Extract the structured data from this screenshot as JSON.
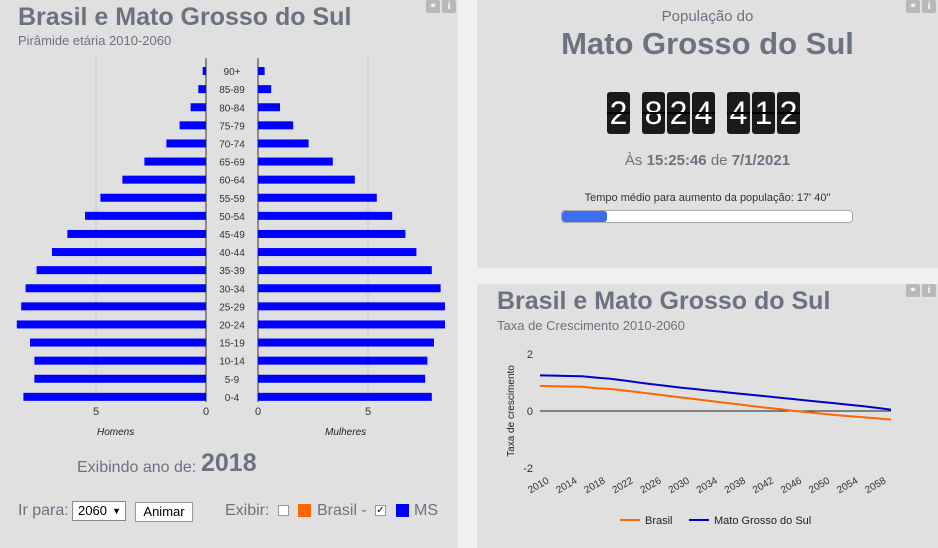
{
  "left_panel": {
    "title": "Brasil e Mato Grosso do Sul",
    "subtitle": "Pirâmide etária 2010-2060",
    "label_men": "Homens",
    "label_women": "Mulheres",
    "year_label": "Exibindo ano de:",
    "year_value": "2018",
    "goto_label": "Ir para:",
    "goto_selected": "2060",
    "animate_button": "Animar",
    "show_label": "Exibir:",
    "show_brasil": "Brasil -",
    "show_ms": "MS",
    "brasil_checked": false,
    "ms_checked": true,
    "brasil_color": "#ff6600",
    "ms_color": "#0000ff",
    "icons": [
      "link-icon",
      "info-icon"
    ]
  },
  "population_panel": {
    "title_small": "População do",
    "title_big": "Mato Grosso do Sul",
    "counter_groups": [
      [
        "2"
      ],
      [
        "8",
        "2",
        "4"
      ],
      [
        "4",
        "1",
        "2"
      ]
    ],
    "time_prefix": "Às",
    "time_value": "15:25:46",
    "date_prefix": "de",
    "date_value": "7/1/2021",
    "avg_text": "Tempo médio para aumento da população: 17' 40\"",
    "progress_fraction": 0.155,
    "accent": "#3b6ef0",
    "icons": [
      "link-icon",
      "info-icon"
    ]
  },
  "growth_panel": {
    "title": "Brasil e Mato Grosso do Sul",
    "subtitle": "Taxa de Crescimento 2010-2060",
    "icons": [
      "link-icon",
      "info-icon"
    ]
  },
  "chart_data": [
    {
      "type": "bar",
      "orientation": "horizontal-population-pyramid",
      "categories": [
        "90+",
        "85-89",
        "80-84",
        "75-79",
        "70-74",
        "65-69",
        "60-64",
        "55-59",
        "50-54",
        "45-49",
        "40-44",
        "35-39",
        "30-34",
        "25-29",
        "20-24",
        "15-19",
        "10-14",
        "5-9",
        "0-4"
      ],
      "series": [
        {
          "name": "Homens",
          "values": [
            0.15,
            0.35,
            0.7,
            1.2,
            1.8,
            2.8,
            3.8,
            4.8,
            5.5,
            6.3,
            7.0,
            7.7,
            8.2,
            8.4,
            8.6,
            8.0,
            7.8,
            7.8,
            8.3
          ]
        },
        {
          "name": "Mulheres",
          "values": [
            0.3,
            0.6,
            1.0,
            1.6,
            2.3,
            3.4,
            4.4,
            5.4,
            6.1,
            6.7,
            7.2,
            7.9,
            8.3,
            8.5,
            8.5,
            8.0,
            7.7,
            7.6,
            7.9
          ]
        }
      ],
      "xticks": [
        "5",
        "0",
        "0",
        "5"
      ],
      "color": "#0000ff"
    },
    {
      "type": "line",
      "x": [
        2010,
        2012,
        2014,
        2016,
        2018,
        2020,
        2022,
        2024,
        2026,
        2028,
        2030,
        2032,
        2034,
        2036,
        2038,
        2040,
        2042,
        2044,
        2046,
        2048,
        2050,
        2052,
        2054,
        2056,
        2058,
        2060
      ],
      "xticks": [
        "2010",
        "2014",
        "2018",
        "2022",
        "2026",
        "2030",
        "2034",
        "2038",
        "2042",
        "2046",
        "2050",
        "2054",
        "2058"
      ],
      "ylabel": "Taxa de crescimento",
      "ylim": [
        -2,
        2
      ],
      "yticks": [
        "2",
        "0",
        "-2"
      ],
      "series": [
        {
          "name": "Brasil",
          "color": "#ff6600",
          "values": [
            0.88,
            0.87,
            0.86,
            0.85,
            0.8,
            0.77,
            0.72,
            0.66,
            0.6,
            0.54,
            0.48,
            0.42,
            0.36,
            0.3,
            0.24,
            0.18,
            0.12,
            0.07,
            0.01,
            -0.04,
            -0.09,
            -0.14,
            -0.18,
            -0.22,
            -0.26,
            -0.3
          ]
        },
        {
          "name": "Mato Grosso do Sul",
          "color": "#0000cc",
          "values": [
            1.25,
            1.24,
            1.23,
            1.22,
            1.17,
            1.13,
            1.07,
            1.0,
            0.94,
            0.88,
            0.82,
            0.77,
            0.72,
            0.67,
            0.62,
            0.57,
            0.52,
            0.47,
            0.42,
            0.37,
            0.32,
            0.27,
            0.22,
            0.17,
            0.11,
            0.05
          ]
        }
      ]
    }
  ]
}
